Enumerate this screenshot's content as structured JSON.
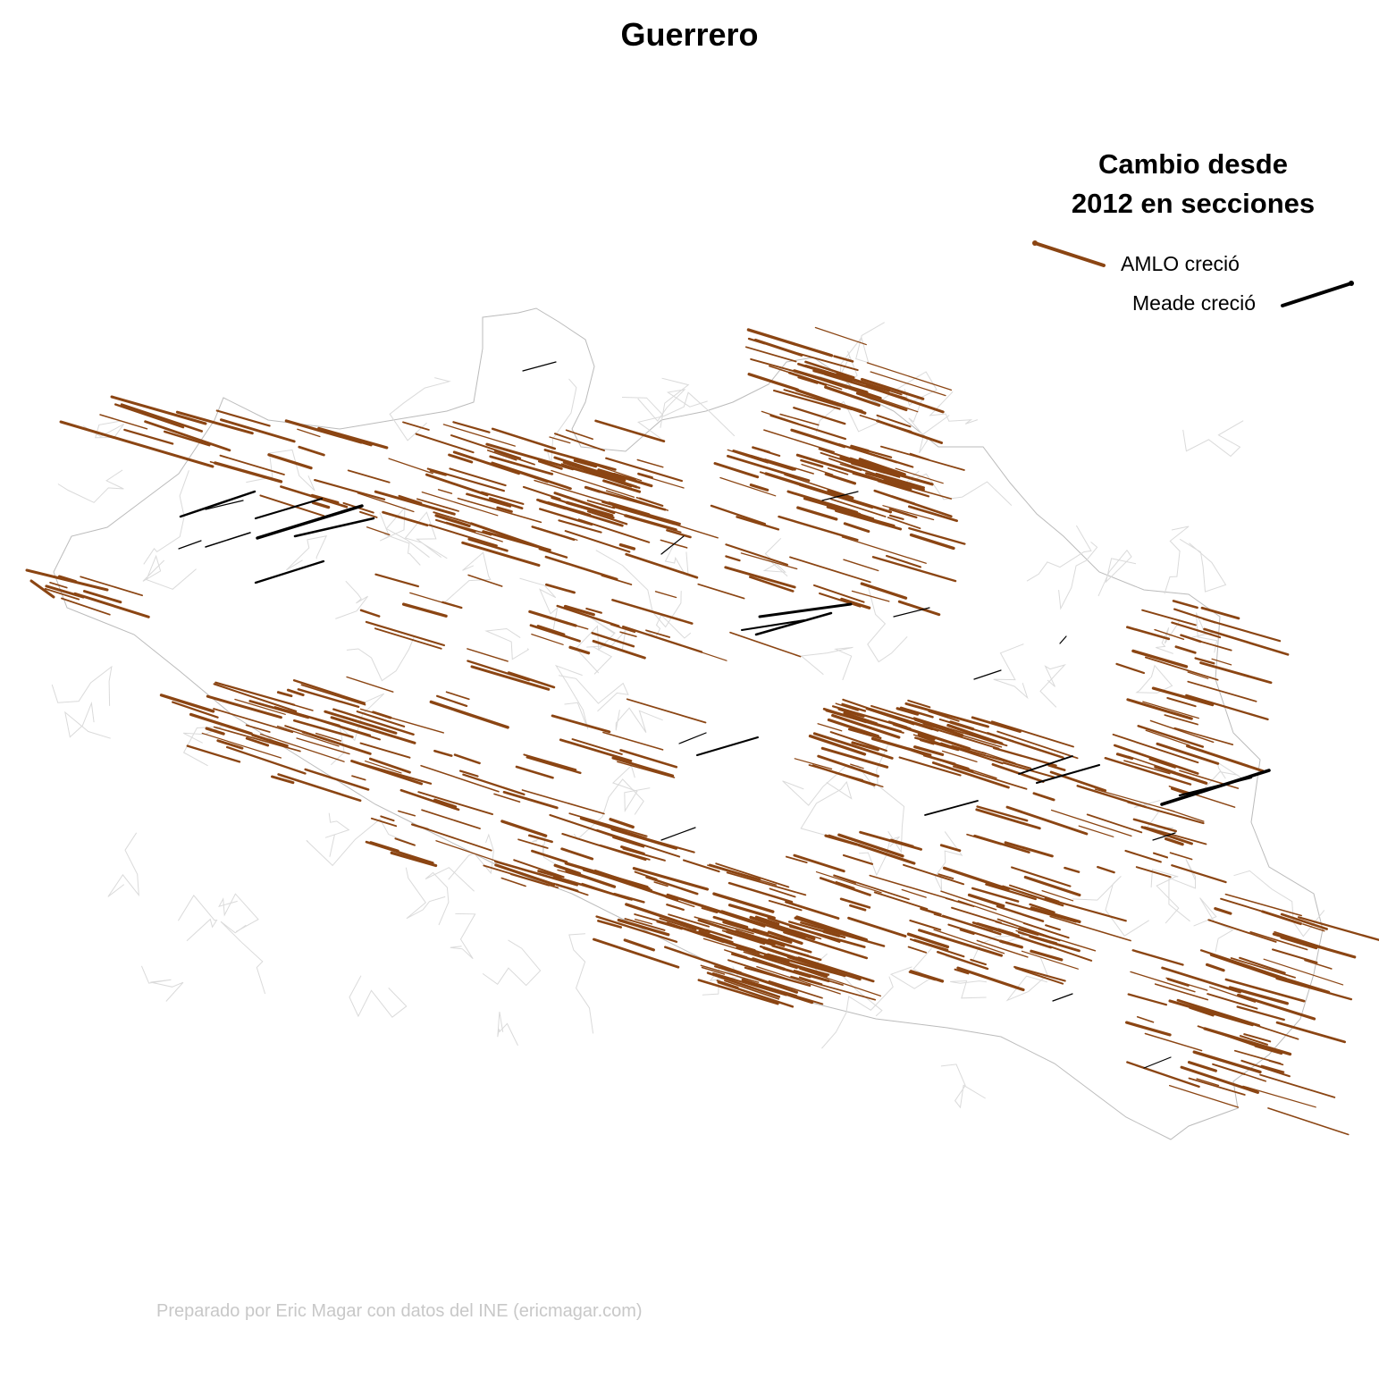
{
  "title": "Guerrero",
  "legend": {
    "title_line1": "Cambio desde",
    "title_line2": "2012 en secciones",
    "items": [
      {
        "label": "AMLO creció",
        "color": "#8B4513"
      },
      {
        "label": "Meade creció",
        "color": "#000000"
      }
    ]
  },
  "credit": "Preparado por Eric Magar con datos del INE (ericmagar.com)",
  "colors": {
    "amlo": "#8B4513",
    "meade": "#000000",
    "boundary": "#c8c8c8"
  }
}
